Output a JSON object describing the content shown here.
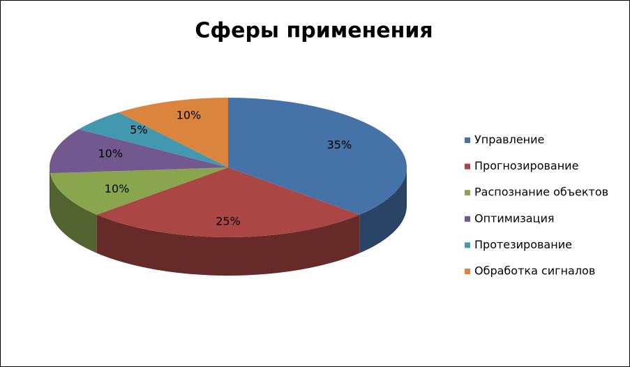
{
  "chart_data": {
    "type": "pie",
    "title": "Сферы применения",
    "categories": [
      "Управление",
      "Прогнозирование",
      "Распознание объектов",
      "Оптимизация",
      "Протезирование",
      "Обработка сигналов"
    ],
    "values": [
      35,
      25,
      10,
      10,
      5,
      10
    ],
    "value_labels": [
      "35%",
      "25%",
      "10%",
      "10%",
      "5%",
      "10%"
    ],
    "colors": [
      "#4572A7",
      "#AA4643",
      "#89A54E",
      "#71588F",
      "#4198AF",
      "#DB843D"
    ],
    "legend": "right"
  }
}
